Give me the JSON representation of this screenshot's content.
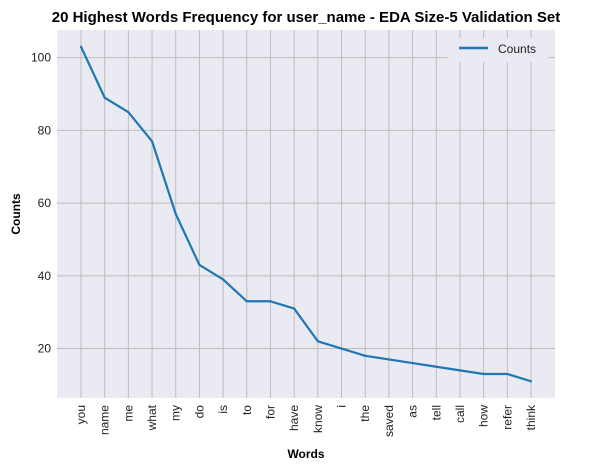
{
  "chart_data": {
    "type": "line",
    "title": "20 Highest Words Frequency for user_name - EDA Size-5 Validation Set",
    "xlabel": "Words",
    "ylabel": "Counts",
    "categories": [
      "you",
      "name",
      "me",
      "what",
      "my",
      "do",
      "is",
      "to",
      "for",
      "have",
      "know",
      "i",
      "the",
      "saved",
      "as",
      "tell",
      "call",
      "how",
      "refer",
      "think"
    ],
    "series": [
      {
        "name": "Counts",
        "values": [
          103,
          89,
          85,
          77,
          57,
          43,
          39,
          33,
          33,
          31,
          22,
          20,
          18,
          17,
          16,
          15,
          14,
          13,
          13,
          11
        ],
        "color": "#1f77b4"
      }
    ],
    "ylim": [
      6.4,
      107.6
    ],
    "yticks": [
      20,
      40,
      60,
      80,
      100
    ],
    "grid": true,
    "background": "#eaeaf2",
    "legend_position": "top-right"
  }
}
